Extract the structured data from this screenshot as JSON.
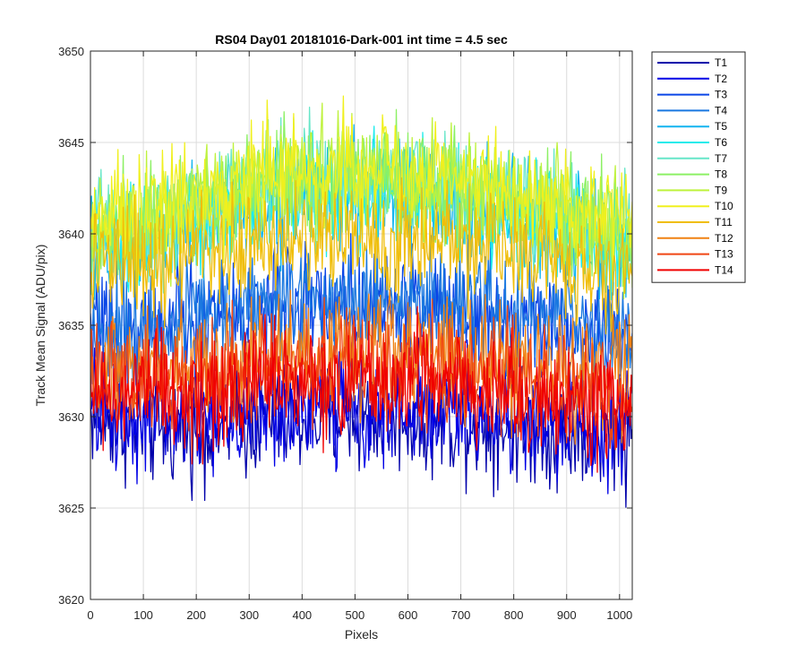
{
  "chart_data": {
    "type": "line",
    "title": "RS04 Day01 20181016-Dark-001 int time = 4.5 sec",
    "xlabel": "Pixels",
    "ylabel": "Track Mean Signal (ADU/pix)",
    "xlim": [
      0,
      1024
    ],
    "ylim": [
      3620,
      3650
    ],
    "xticks": [
      0,
      100,
      200,
      300,
      400,
      500,
      600,
      700,
      800,
      900,
      1000
    ],
    "yticks": [
      3620,
      3625,
      3630,
      3635,
      3640,
      3645,
      3650
    ],
    "grid": true,
    "legend_position": "outside-top-right",
    "x": [
      0,
      64,
      128,
      192,
      256,
      320,
      384,
      448,
      512,
      576,
      640,
      704,
      768,
      832,
      896,
      960,
      1023
    ],
    "series": [
      {
        "name": "T1",
        "color": "#0000AA",
        "noise": 1.5,
        "values": [
          3630.2,
          3629.6,
          3629.2,
          3629.4,
          3629.6,
          3629.7,
          3629.8,
          3630.0,
          3630.0,
          3630.0,
          3629.9,
          3629.8,
          3629.6,
          3629.4,
          3629.2,
          3629.0,
          3629.0
        ]
      },
      {
        "name": "T2",
        "color": "#0000E6",
        "noise": 1.5,
        "values": [
          3630.6,
          3630.0,
          3629.8,
          3630.0,
          3630.2,
          3630.3,
          3630.4,
          3630.5,
          3630.6,
          3630.5,
          3630.4,
          3630.3,
          3630.1,
          3629.9,
          3629.6,
          3629.4,
          3629.5
        ]
      },
      {
        "name": "T3",
        "color": "#0A46E6",
        "noise": 1.5,
        "values": [
          3634.8,
          3634.6,
          3634.8,
          3635.2,
          3635.6,
          3635.9,
          3636.1,
          3636.2,
          3636.3,
          3636.2,
          3636.1,
          3635.9,
          3635.6,
          3635.3,
          3634.9,
          3634.5,
          3634.4
        ]
      },
      {
        "name": "T4",
        "color": "#1A78E0",
        "noise": 1.5,
        "values": [
          3635.0,
          3634.9,
          3635.1,
          3635.5,
          3635.9,
          3636.2,
          3636.4,
          3636.6,
          3636.6,
          3636.5,
          3636.4,
          3636.2,
          3635.9,
          3635.6,
          3635.2,
          3634.8,
          3634.7
        ]
      },
      {
        "name": "T5",
        "color": "#14B4F0",
        "noise": 1.5,
        "values": [
          3639.2,
          3639.5,
          3640.0,
          3640.6,
          3641.2,
          3641.7,
          3642.0,
          3642.2,
          3642.2,
          3642.1,
          3641.9,
          3641.6,
          3641.1,
          3640.6,
          3640.0,
          3639.4,
          3639.2
        ]
      },
      {
        "name": "T6",
        "color": "#1EEBEB",
        "noise": 1.5,
        "values": [
          3639.4,
          3639.7,
          3640.2,
          3640.8,
          3641.4,
          3641.9,
          3642.2,
          3642.4,
          3642.4,
          3642.3,
          3642.1,
          3641.8,
          3641.3,
          3640.8,
          3640.2,
          3639.6,
          3639.4
        ]
      },
      {
        "name": "T7",
        "color": "#66E6C8",
        "noise": 1.5,
        "values": [
          3639.8,
          3640.2,
          3640.7,
          3641.3,
          3641.9,
          3642.4,
          3642.7,
          3642.9,
          3642.9,
          3642.8,
          3642.6,
          3642.3,
          3641.8,
          3641.3,
          3640.7,
          3640.1,
          3639.9
        ]
      },
      {
        "name": "T8",
        "color": "#8CF064",
        "noise": 1.5,
        "values": [
          3640.0,
          3640.4,
          3640.9,
          3641.5,
          3642.1,
          3642.6,
          3642.9,
          3643.1,
          3643.1,
          3643.0,
          3642.8,
          3642.5,
          3642.0,
          3641.5,
          3640.9,
          3640.3,
          3640.1
        ]
      },
      {
        "name": "T9",
        "color": "#BEF23C",
        "noise": 1.5,
        "values": [
          3640.2,
          3640.6,
          3641.1,
          3641.7,
          3642.3,
          3642.8,
          3643.1,
          3643.3,
          3643.3,
          3643.2,
          3643.0,
          3642.7,
          3642.2,
          3641.7,
          3641.1,
          3640.5,
          3640.3
        ]
      },
      {
        "name": "T10",
        "color": "#F0F01E",
        "noise": 1.5,
        "values": [
          3640.4,
          3640.8,
          3641.3,
          3641.9,
          3642.5,
          3643.0,
          3643.4,
          3643.6,
          3643.6,
          3643.5,
          3643.3,
          3643.0,
          3642.5,
          3642.0,
          3641.4,
          3640.8,
          3640.6
        ]
      },
      {
        "name": "T11",
        "color": "#F0BE0A",
        "noise": 1.5,
        "values": [
          3638.0,
          3638.2,
          3638.5,
          3638.9,
          3639.3,
          3639.6,
          3639.8,
          3639.9,
          3640.0,
          3639.9,
          3639.8,
          3639.6,
          3639.3,
          3639.0,
          3638.6,
          3638.2,
          3638.1
        ]
      },
      {
        "name": "T12",
        "color": "#F08214",
        "noise": 1.5,
        "values": [
          3632.6,
          3632.5,
          3632.6,
          3632.9,
          3633.2,
          3633.4,
          3633.6,
          3633.7,
          3633.7,
          3633.6,
          3633.5,
          3633.3,
          3633.0,
          3632.7,
          3632.3,
          3632.0,
          3631.9
        ]
      },
      {
        "name": "T13",
        "color": "#F04614",
        "noise": 1.5,
        "values": [
          3631.9,
          3631.8,
          3631.9,
          3632.1,
          3632.4,
          3632.6,
          3632.8,
          3632.9,
          3632.9,
          3632.8,
          3632.7,
          3632.5,
          3632.2,
          3631.9,
          3631.5,
          3631.2,
          3631.1
        ]
      },
      {
        "name": "T14",
        "color": "#F00000",
        "noise": 1.5,
        "values": [
          3631.2,
          3631.0,
          3631.1,
          3631.3,
          3631.6,
          3631.8,
          3632.0,
          3632.1,
          3632.2,
          3632.1,
          3632.0,
          3631.8,
          3631.5,
          3631.2,
          3630.8,
          3630.5,
          3630.4
        ]
      }
    ]
  }
}
